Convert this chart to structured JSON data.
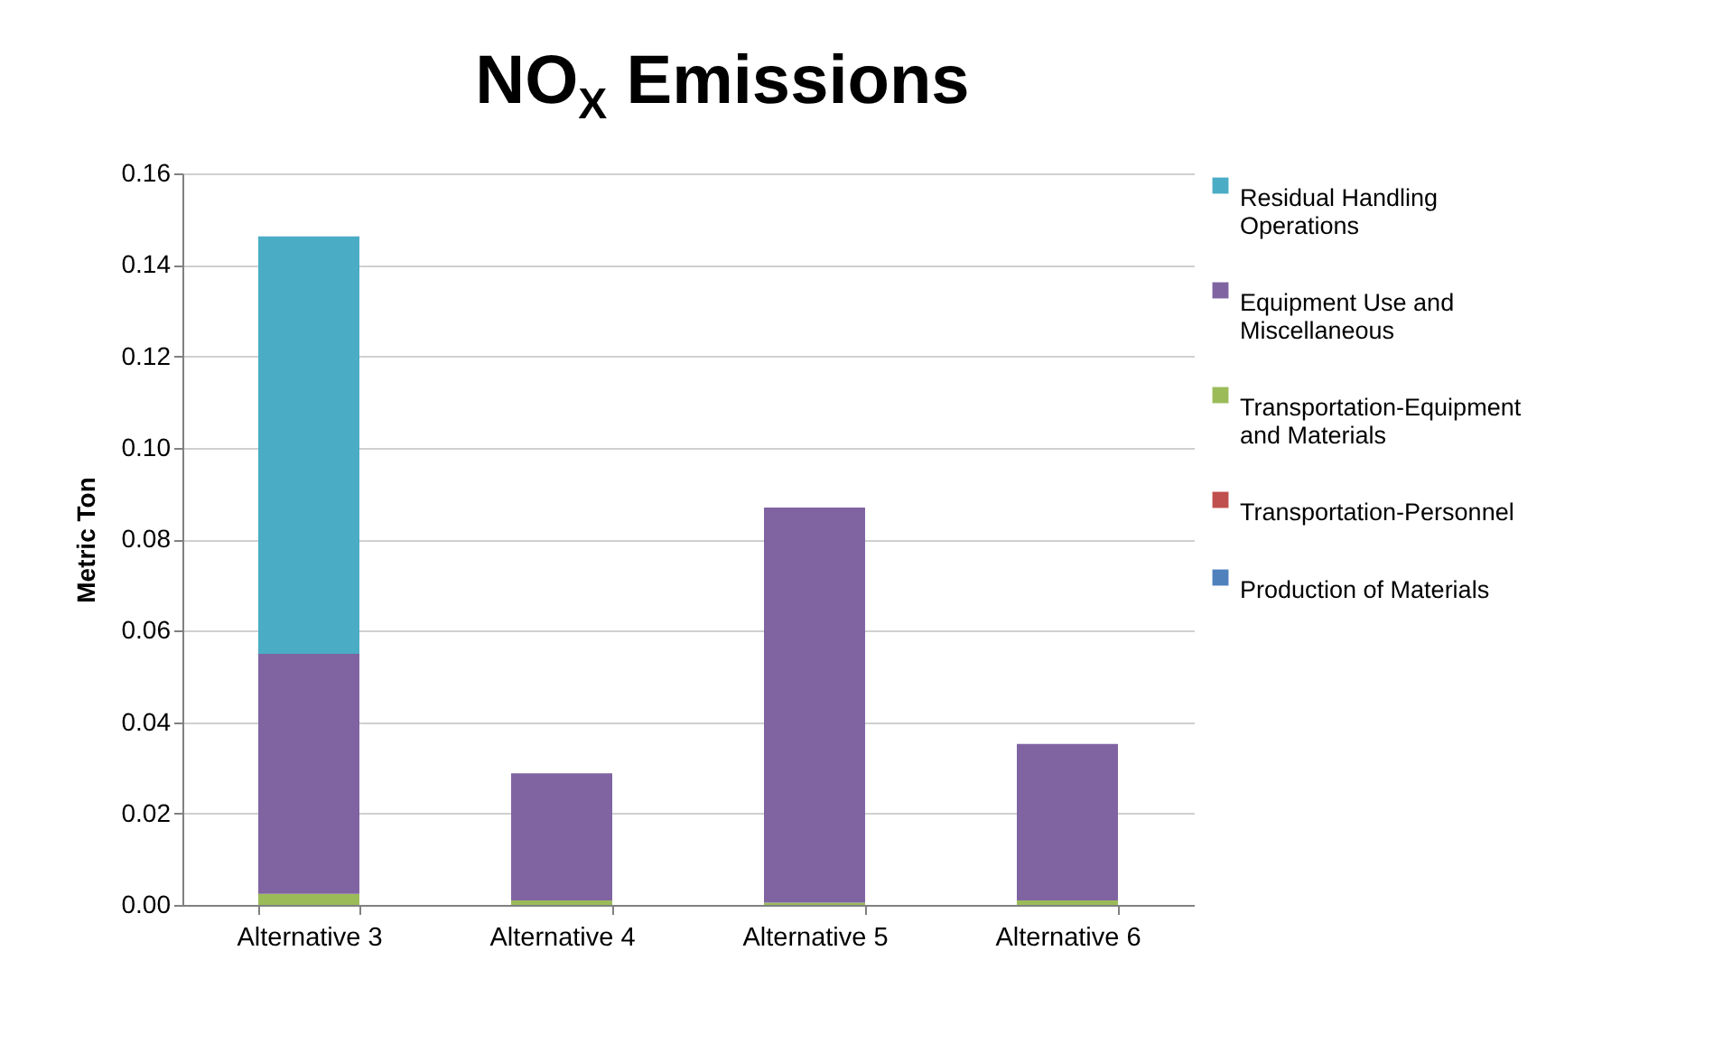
{
  "chart_data": {
    "type": "bar",
    "title": "NO$_{X}$ Emissions",
    "ylabel": "Metric Ton",
    "stacked": true,
    "grid": "y",
    "legend": "right",
    "categories": [
      "Alternative 3",
      "Alternative 4",
      "Alternative 5",
      "Alternative 6"
    ],
    "series": [
      {
        "name": "Production of Materials",
        "color": "#4f81bd",
        "values": [
          0,
          0,
          0,
          0
        ]
      },
      {
        "name": "Transportation-Personnel",
        "color": "#c0504d",
        "values": [
          0,
          0,
          0,
          0
        ]
      },
      {
        "name": "Transportation-Equipment and Materials",
        "color": "#9bbb59",
        "values": [
          0.0024,
          0.001,
          0.0005,
          0.001
        ]
      },
      {
        "name": "Equipment Use and Miscellaneous",
        "color": "#8064a2",
        "values": [
          0.0525,
          0.0278,
          0.0864,
          0.0342
        ]
      },
      {
        "name": "Residual Handling Operations",
        "color": "#4bacc6",
        "values": [
          0.0913,
          0,
          0,
          0
        ]
      }
    ],
    "ylim": [
      0,
      0.16
    ],
    "yticks": [
      {
        "value": 0,
        "label": "0.00"
      },
      {
        "value": 0.02,
        "label": "0.02"
      },
      {
        "value": 0.04,
        "label": "0.04"
      },
      {
        "value": 0.06,
        "label": "0.06"
      },
      {
        "value": 0.08,
        "label": "0.08"
      },
      {
        "value": 0.1,
        "label": "0.10"
      },
      {
        "value": 0.12,
        "label": "0.12"
      },
      {
        "value": 0.14,
        "label": "0.14"
      },
      {
        "value": 0.16,
        "label": "0.16"
      }
    ]
  }
}
